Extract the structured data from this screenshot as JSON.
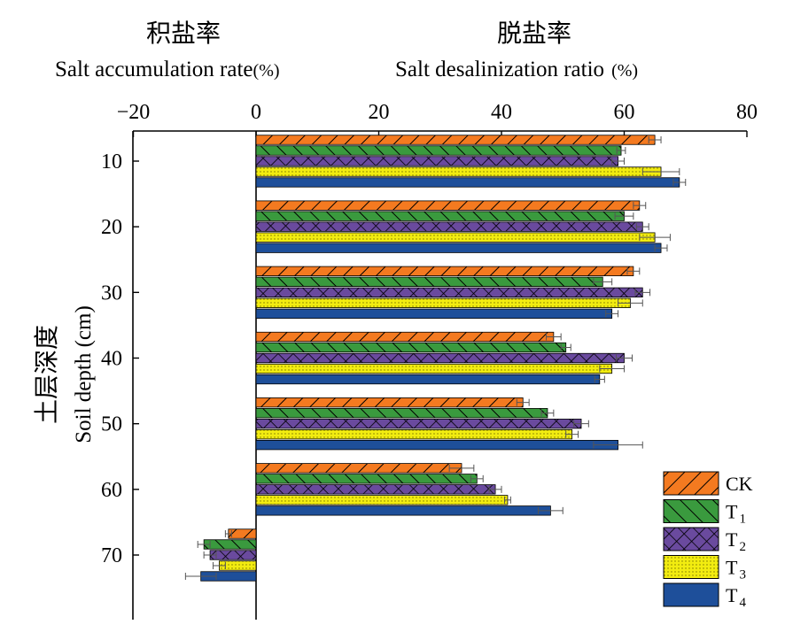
{
  "titles": {
    "left_cn": "积盐率",
    "left_en": "Salt accumulation rate",
    "left_unit": "(%)",
    "right_cn": "脱盐率",
    "right_en": "Salt desalinization ratio",
    "right_unit": "(%)",
    "y_cn": "土层深度",
    "y_en": "Soil depth (cm)"
  },
  "colors": {
    "CK": "#F47A20",
    "T1": "#3A9A3E",
    "T2": "#6A4A9E",
    "T3": "#F2EC10",
    "T4": "#1E4F9A"
  },
  "chart_data": {
    "type": "bar",
    "orientation": "horizontal",
    "xlim": [
      -20,
      80
    ],
    "x_ticks": [
      -20,
      0,
      20,
      40,
      60,
      80
    ],
    "x_tick_labels": [
      "−20",
      "0",
      "20",
      "40",
      "60",
      "80"
    ],
    "y_ticks": [
      10,
      20,
      30,
      40,
      50,
      60,
      70
    ],
    "ylim": [
      5,
      80
    ],
    "xlabel": "Salt accumulation rate(%) / Salt desalinization ratio (%)",
    "ylabel": "Soil depth (cm)",
    "categories": [
      "10",
      "20",
      "30",
      "40",
      "50",
      "60",
      "70"
    ],
    "legend": {
      "position": "bottom-right"
    },
    "series": [
      {
        "name": "CK",
        "base": "T",
        "sub": "",
        "pattern": "diag",
        "values": [
          65,
          62.5,
          61.5,
          48.5,
          43.5,
          33.5,
          -4.5
        ],
        "errors": [
          1.0,
          1.0,
          1.0,
          1.2,
          1.0,
          2.0,
          0.5
        ]
      },
      {
        "name": "T1",
        "base": "T",
        "sub": "1",
        "pattern": "anti",
        "values": [
          59.5,
          60,
          56.5,
          50.5,
          47.5,
          36,
          -8.5
        ],
        "errors": [
          0.7,
          1.5,
          1.5,
          0.8,
          1.0,
          1.0,
          1.0
        ]
      },
      {
        "name": "T2",
        "base": "T",
        "sub": "2",
        "pattern": "cross",
        "values": [
          59,
          63,
          63,
          60,
          53,
          39,
          -7.5
        ],
        "errors": [
          1.0,
          1.0,
          1.2,
          1.3,
          1.2,
          1.0,
          1.0
        ]
      },
      {
        "name": "T3",
        "base": "T",
        "sub": "3",
        "pattern": "dots",
        "values": [
          66,
          65,
          61,
          58,
          51.5,
          41,
          -6
        ],
        "errors": [
          3.0,
          2.5,
          2.0,
          2.0,
          1.0,
          0.5,
          1.0
        ]
      },
      {
        "name": "T4",
        "base": "T",
        "sub": "4",
        "pattern": "solid",
        "values": [
          69,
          66,
          58,
          56,
          59,
          48,
          -9
        ],
        "errors": [
          1.0,
          1.0,
          1.0,
          0.8,
          4.0,
          2.0,
          2.5
        ]
      }
    ]
  }
}
